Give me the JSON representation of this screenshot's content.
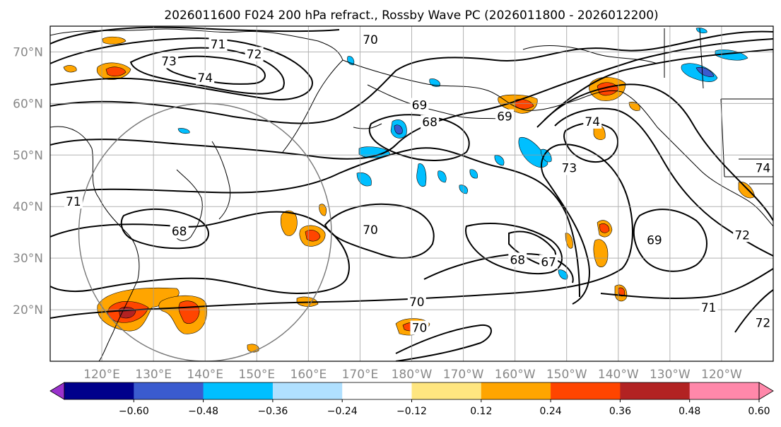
{
  "title": "2026011600 F024 200 hPa refract., Rossby Wave PC (2026011800 - 2026012200)",
  "map": {
    "lon_range": [
      110,
      250
    ],
    "lat_range": [
      10,
      75
    ],
    "lat_ticks": [
      {
        "lat": 70,
        "label": "70°N"
      },
      {
        "lat": 60,
        "label": "60°N"
      },
      {
        "lat": 50,
        "label": "50°N"
      },
      {
        "lat": 40,
        "label": "40°N"
      },
      {
        "lat": 30,
        "label": "30°N"
      },
      {
        "lat": 20,
        "label": "20°N"
      }
    ],
    "lon_ticks": [
      {
        "lon": 120,
        "label": "120°E"
      },
      {
        "lon": 130,
        "label": "130°E"
      },
      {
        "lon": 140,
        "label": "140°E"
      },
      {
        "lon": 150,
        "label": "150°E"
      },
      {
        "lon": 160,
        "label": "160°E"
      },
      {
        "lon": 170,
        "label": "170°E"
      },
      {
        "lon": 180,
        "label": "180°W"
      },
      {
        "lon": 190,
        "label": "170°W"
      },
      {
        "lon": 200,
        "label": "160°W"
      },
      {
        "lon": 210,
        "label": "150°W"
      },
      {
        "lon": 220,
        "label": "140°W"
      },
      {
        "lon": 230,
        "label": "130°W"
      },
      {
        "lon": 240,
        "label": "120°W"
      }
    ],
    "contour_labels": [
      {
        "text": "70",
        "lon": 172,
        "lat": 72.4
      },
      {
        "text": "71",
        "lon": 142.5,
        "lat": 71.5
      },
      {
        "text": "72",
        "lon": 149.5,
        "lat": 69.6
      },
      {
        "text": "73",
        "lon": 133,
        "lat": 68.2
      },
      {
        "text": "74",
        "lon": 140,
        "lat": 65
      },
      {
        "text": "69",
        "lon": 181.5,
        "lat": 59.7
      },
      {
        "text": "68",
        "lon": 183.5,
        "lat": 56.4
      },
      {
        "text": "69",
        "lon": 198,
        "lat": 57.5
      },
      {
        "text": "74",
        "lon": 215,
        "lat": 56.5
      },
      {
        "text": "73",
        "lon": 210.5,
        "lat": 47.5
      },
      {
        "text": "74",
        "lon": 248,
        "lat": 47.5
      },
      {
        "text": "71",
        "lon": 114.5,
        "lat": 41
      },
      {
        "text": "68",
        "lon": 135,
        "lat": 35.2
      },
      {
        "text": "70",
        "lon": 172,
        "lat": 35.5
      },
      {
        "text": "69",
        "lon": 227,
        "lat": 33.5
      },
      {
        "text": "68",
        "lon": 200.5,
        "lat": 29.7
      },
      {
        "text": "67",
        "lon": 206.5,
        "lat": 29.3
      },
      {
        "text": "72",
        "lon": 244,
        "lat": 34.5
      },
      {
        "text": "70",
        "lon": 181,
        "lat": 21.5
      },
      {
        "text": "70",
        "lon": 181.5,
        "lat": 16.5
      },
      {
        "text": "71",
        "lon": 237.5,
        "lat": 20.4
      },
      {
        "text": "72",
        "lon": 248,
        "lat": 17.5
      }
    ],
    "region_circle": {
      "lon": 140,
      "lat": 35,
      "radius_deg_lat": 25
    }
  },
  "colorbar": {
    "ticks": [
      "−0.60",
      "−0.48",
      "−0.36",
      "−0.24",
      "−0.12",
      "0.12",
      "0.24",
      "0.36",
      "0.48",
      "0.60"
    ],
    "colors": [
      "#9932cc",
      "#00008b",
      "#3a5bcf",
      "#00bfff",
      "#b0e0ff",
      "#ffffff",
      "#ffe680",
      "#ffa500",
      "#ff4500",
      "#b22222",
      "#ff88aa",
      "#ff88aa"
    ]
  }
}
